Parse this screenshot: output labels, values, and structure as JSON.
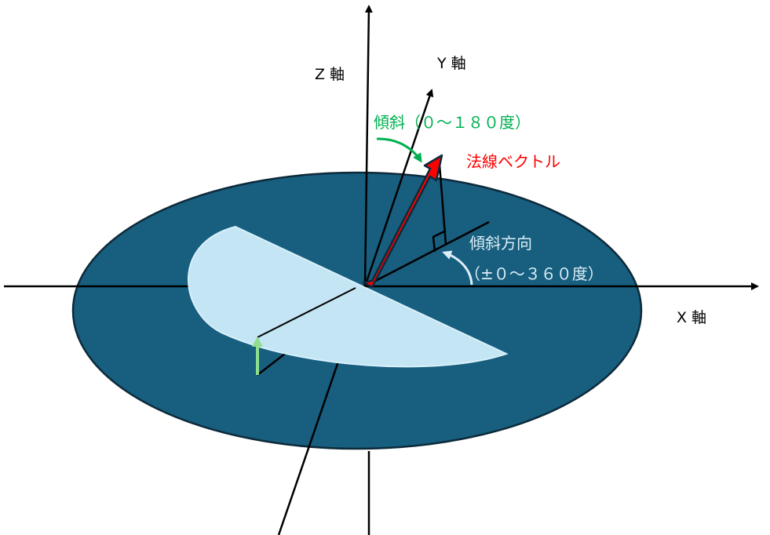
{
  "labels": {
    "z_axis": "Z 軸",
    "y_axis": "Y 軸",
    "x_axis": "X 軸",
    "tilt": "傾斜（０～１８０度）",
    "normal_vector": "法線ベクトル",
    "tilt_direction": "傾斜方向",
    "tilt_direction_range": "（±０～３６０度）"
  },
  "colors": {
    "disk": "#175e7f",
    "half_plane": "#c3e5f4",
    "normal_vector": "#ff0000",
    "tilt_label": "#00b050",
    "tilt_direction_label": "#dceef7",
    "small_arrow": "#8ede8e"
  }
}
